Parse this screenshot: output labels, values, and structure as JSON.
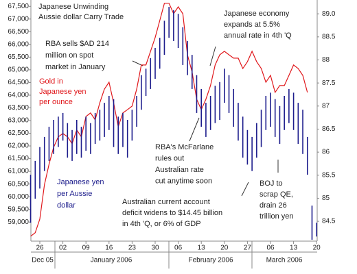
{
  "chart_data": {
    "type": "line",
    "title": [
      "Japanese Unwinding",
      "Aussie dollar Carry Trade"
    ],
    "categories": [
      null,
      null,
      "26",
      null,
      null,
      null,
      null,
      "02",
      null,
      null,
      null,
      null,
      "09",
      null,
      null,
      null,
      null,
      "16",
      null,
      null,
      null,
      null,
      "23",
      null,
      null,
      null,
      null,
      "30",
      null,
      null,
      null,
      null,
      "06",
      null,
      null,
      null,
      null,
      "13",
      null,
      null,
      null,
      null,
      "20",
      null,
      null,
      null,
      null,
      "27",
      null,
      null,
      null,
      null,
      "06",
      null,
      null,
      null,
      null,
      "13",
      null,
      null,
      null,
      null,
      "20"
    ],
    "x_group_labels": [
      "Dec 05",
      "January 2006",
      "February 2006",
      "March 2006"
    ],
    "ylim": [
      58250,
      67750
    ],
    "yticks": [
      {
        "value": 59000,
        "label": "59,000"
      },
      {
        "value": 59500,
        "label": "59,500"
      },
      {
        "value": 60000,
        "label": "60,000"
      },
      {
        "value": 60500,
        "label": "60,500"
      },
      {
        "value": 61000,
        "label": "61,000"
      },
      {
        "value": 61500,
        "label": "61,500"
      },
      {
        "value": 62000,
        "label": "62,000"
      },
      {
        "value": 62500,
        "label": "62,500"
      },
      {
        "value": 63000,
        "label": "63,000"
      },
      {
        "value": 63500,
        "label": "63,500"
      },
      {
        "value": 64000,
        "label": "64,000"
      },
      {
        "value": 64500,
        "label": "64,500"
      },
      {
        "value": 65000,
        "label": "65,000"
      },
      {
        "value": 65500,
        "label": "65,500"
      },
      {
        "value": 66000,
        "label": "66,000"
      },
      {
        "value": 66500,
        "label": "66,500"
      },
      {
        "value": 67000,
        "label": "67,000"
      },
      {
        "value": 67500,
        "label": "67,500"
      }
    ],
    "y2lim": [
      84.07,
      89.3
    ],
    "y2ticks": [
      84.5,
      85,
      85.5,
      86,
      86.5,
      87,
      87.5,
      88,
      88.5,
      {
        "value": 89,
        "label": "89.0"
      }
    ],
    "series": [
      {
        "name": [
          "Gold in",
          "Japanese yen",
          "per ounce"
        ],
        "color": "#e0181c",
        "values": [
          58440,
          58580,
          59120,
          60470,
          61280,
          61950,
          62360,
          62490,
          62360,
          62090,
          62630,
          62360,
          63160,
          63300,
          63030,
          63700,
          64240,
          64510,
          63700,
          62760,
          63300,
          63430,
          63570,
          64240,
          65190,
          65190,
          65730,
          66270,
          66940,
          67620,
          67620,
          67210,
          67480,
          67210,
          65590,
          64920,
          63840,
          63430,
          63840,
          64380,
          65190,
          65590,
          65730,
          65590,
          65460,
          65460,
          65050,
          65320,
          65730,
          65320,
          65050,
          64510,
          64780,
          64110,
          64380,
          64380,
          64780,
          65190,
          65050,
          64780,
          64110,
          null,
          null
        ]
      },
      {
        "name": [
          "Japanese yen",
          "per Aussie",
          "dollar"
        ],
        "color": "#1c1c8c",
        "type": "hilo",
        "axis": "y2",
        "high": [
          85.51,
          85.81,
          86.11,
          86.33,
          86.55,
          86.7,
          86.77,
          86.85,
          86.63,
          86.48,
          86.7,
          86.55,
          86.77,
          86.63,
          86.85,
          86.92,
          87.07,
          87.22,
          87.15,
          86.77,
          86.85,
          86.7,
          86.92,
          87.22,
          87.67,
          87.81,
          88.04,
          88.26,
          88.48,
          88.85,
          89.15,
          89.08,
          89.0,
          88.71,
          88.41,
          88.11,
          87.67,
          87.37,
          87.07,
          87.22,
          87.44,
          87.52,
          87.81,
          87.67,
          87.37,
          87.07,
          86.77,
          86.48,
          86.33,
          86.63,
          86.92,
          87.22,
          87.29,
          87.15,
          87.0,
          87.22,
          87.37,
          87.29,
          87.07,
          86.92,
          86.33,
          84.84,
          84.47
        ],
        "low": [
          84.47,
          84.99,
          85.21,
          85.59,
          85.81,
          85.96,
          86.11,
          86.25,
          85.88,
          85.81,
          85.96,
          85.88,
          86.03,
          85.96,
          86.18,
          86.25,
          86.33,
          86.48,
          86.11,
          85.96,
          86.11,
          85.88,
          86.25,
          86.55,
          86.92,
          87.22,
          87.37,
          87.59,
          87.81,
          88.11,
          88.48,
          88.41,
          88.26,
          87.89,
          87.67,
          87.37,
          86.85,
          86.55,
          86.33,
          86.48,
          86.63,
          86.7,
          87.07,
          86.85,
          86.55,
          86.25,
          85.88,
          85.73,
          85.59,
          85.88,
          86.11,
          86.48,
          86.55,
          86.33,
          86.18,
          86.48,
          86.63,
          86.48,
          86.18,
          85.96,
          85.51,
          84.1,
          84.17
        ]
      }
    ],
    "annotations": [
      [
        "RBA sells $AD 214",
        "million on spot",
        "market in January"
      ],
      [
        "Japanese economy",
        "expands at 5.5%",
        "annual rate in 4th 'Q"
      ],
      [
        "RBA's McFarlane",
        "rules out",
        "Australian rate",
        "cut anytime soon"
      ],
      [
        "Australian current account",
        "deficit widens to $14.45 billion",
        "in 4th 'Q, or 6% of GDP"
      ],
      [
        "BOJ to",
        "scrap QE,",
        "drain 26",
        "trillion yen"
      ]
    ]
  }
}
